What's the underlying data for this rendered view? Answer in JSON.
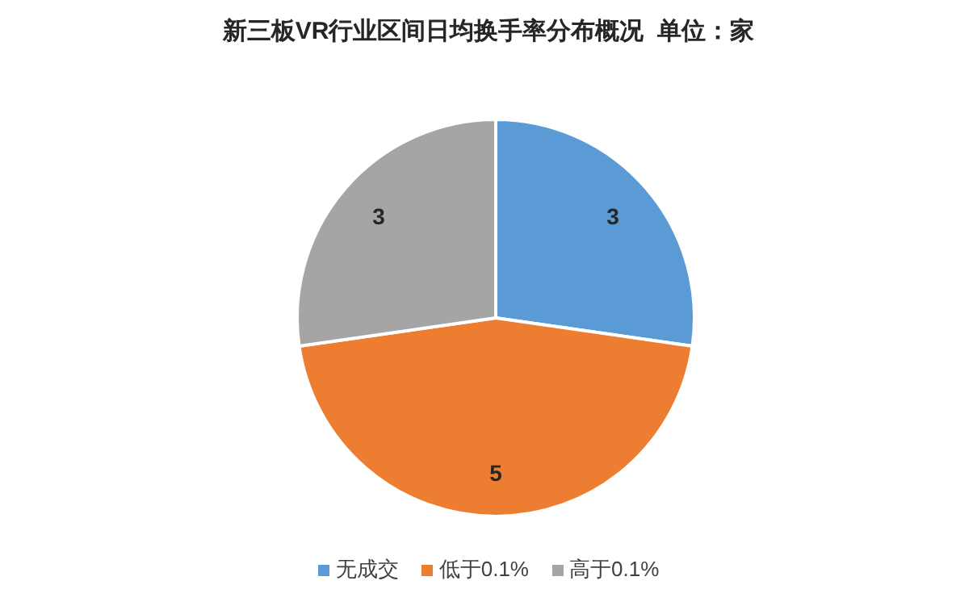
{
  "chart_data": {
    "type": "pie",
    "title": "新三板VR行业区间日均换手率分布概况  单位：家",
    "categories": [
      "无成交",
      "低于0.1%",
      "高于0.1%"
    ],
    "values": [
      3,
      5,
      3
    ],
    "colors": [
      "#5b9bd5",
      "#ed7d31",
      "#a5a5a5"
    ],
    "data_labels": true,
    "legend": "bottom"
  }
}
